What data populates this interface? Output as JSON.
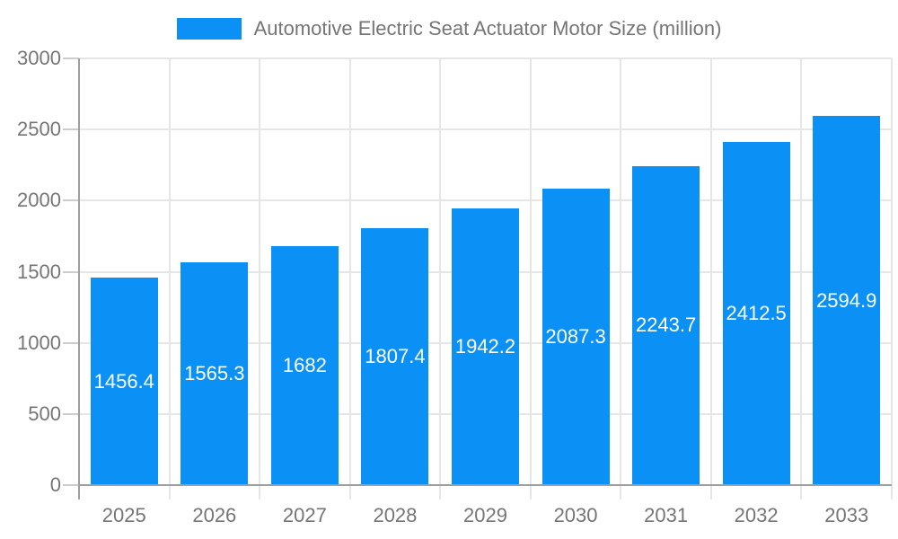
{
  "chart_data": {
    "type": "bar",
    "title": "Automotive Electric Seat Actuator Motor Size (million)",
    "categories": [
      "2025",
      "2026",
      "2027",
      "2028",
      "2029",
      "2030",
      "2031",
      "2032",
      "2033"
    ],
    "series": [
      {
        "name": "Automotive Electric Seat Actuator Motor Size (million)",
        "values": [
          1456.4,
          1565.3,
          1682,
          1807.4,
          1942.2,
          2087.3,
          2243.7,
          2412.5,
          2594.9
        ]
      }
    ],
    "xlabel": "",
    "ylabel": "",
    "ylim": [
      0,
      3000
    ],
    "y_ticks": [
      0,
      500,
      1000,
      1500,
      2000,
      2500,
      3000
    ],
    "grid": true,
    "legend_position": "top",
    "colors": {
      "bar": "#0b90f5",
      "value_label": "#ffffff",
      "axis_text": "#757575",
      "legend_text": "#757575",
      "grid_line": "#e6e6e6",
      "tick_line": "#cccccc",
      "axis_line": "#9e9e9e",
      "background": "#ffffff"
    }
  }
}
